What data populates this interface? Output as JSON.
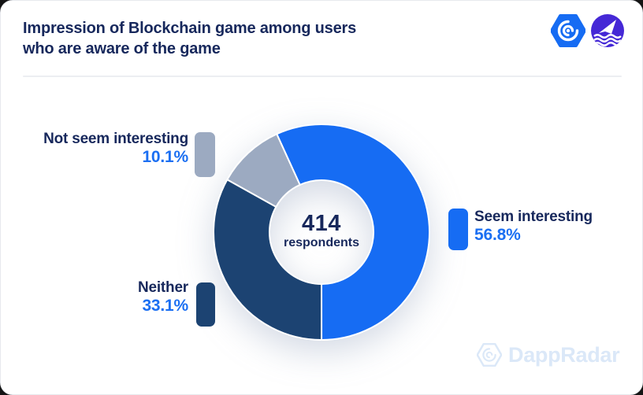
{
  "header": {
    "title_lines": [
      "Impression of Blockchain game among users",
      "who are aware of the game"
    ],
    "logos": [
      "dappradar-hexagon-logo",
      "sail-waves-circle-logo"
    ]
  },
  "chart_data": {
    "type": "pie",
    "donut": true,
    "title": "Impression of Blockchain game among users who are aware of the game",
    "categories": [
      "Seem interesting",
      "Neither",
      "Not seem interesting"
    ],
    "values": [
      56.8,
      33.1,
      10.1
    ],
    "unit": "%",
    "colors": [
      "#166cf3",
      "#1c4372",
      "#9caac1"
    ],
    "start_angle_deg": -24.5,
    "center": {
      "value": "414",
      "label": "respondents"
    },
    "legend_position": "sides",
    "grid": false
  },
  "legend": {
    "seem": {
      "label": "Seem interesting",
      "value": "56.8%"
    },
    "neither": {
      "label": "Neither",
      "value": "33.1%"
    },
    "not_seem": {
      "label": "Not seem interesting",
      "value": "10.1%"
    }
  },
  "watermark": {
    "text": "DappRadar"
  },
  "colors": {
    "accent_blue": "#166cf3",
    "slice_navy": "#1c4372",
    "slice_gray": "#9caac1",
    "title_navy": "#17285c",
    "value_blue": "#1b6ff2",
    "watermark_blue": "#dbe8f8",
    "logo_purple": "#4528d6",
    "card_background": "#ffffff",
    "separator": "#eceef2"
  }
}
